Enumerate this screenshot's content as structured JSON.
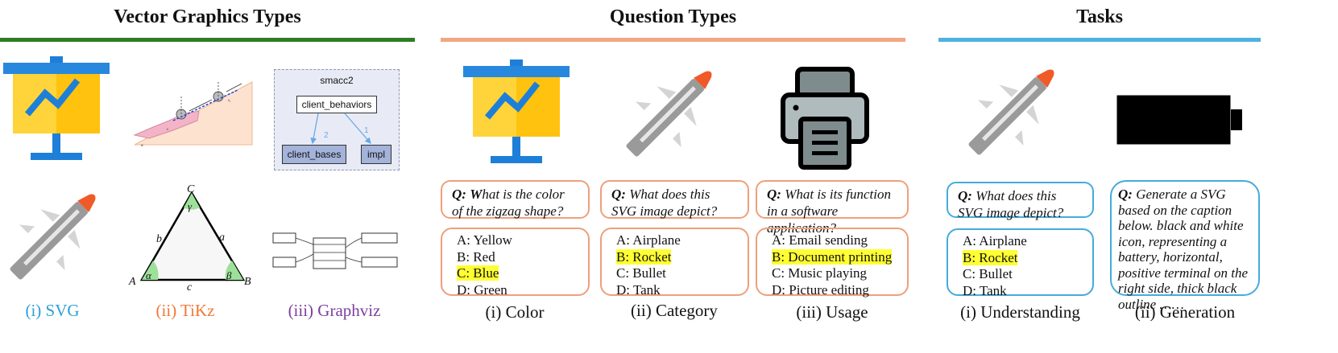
{
  "colors": {
    "green_rule": "#2e7d24",
    "orange_rule": "#f2a784",
    "blue_rule": "#4db2e0",
    "svg_caption": "#2a9fd8",
    "tikz_caption": "#f07836",
    "graphviz_caption": "#7b3f9e",
    "highlight": "#ffff33",
    "option_border_orange": "#ef9f7c",
    "option_border_blue": "#46abdb"
  },
  "sections": {
    "vector": {
      "title": "Vector Graphics Types",
      "captions": [
        "(i) SVG",
        "(ii) TiKz",
        "(iii) Graphviz"
      ]
    },
    "questions": {
      "title": "Question Types",
      "captions": [
        "(i) Color",
        "(ii) Category",
        "(iii) Usage"
      ]
    },
    "tasks": {
      "title": "Tasks",
      "captions": [
        "(i) Understanding",
        "(ii) Generation"
      ]
    }
  },
  "graphviz": {
    "title": "smacc2",
    "root": "client_behaviors",
    "left": "client_bases",
    "right": "impl",
    "edge_left": "2",
    "edge_right": "1"
  },
  "triangle": {
    "A": "A",
    "B": "B",
    "C": "C",
    "a": "a",
    "b": "b",
    "c": "c",
    "alpha": "α",
    "beta": "β",
    "gamma": "γ"
  },
  "q_color": {
    "q": "Q:",
    "bold_letter": "W",
    "text": "hat is the color of the zigzag shape?",
    "options": [
      "A: Yellow",
      "B: Red",
      "C: Blue",
      "D: Green"
    ],
    "answer_index": 2
  },
  "q_category": {
    "q": "Q:",
    "text": " What does this SVG image depict?",
    "options": [
      "A: Airplane",
      "B: Rocket",
      "C: Bullet",
      "D: Tank"
    ],
    "answer_index": 1
  },
  "q_usage": {
    "q": "Q:",
    "text": " What is its function in a software application?",
    "options": [
      "A: Email sending",
      "B: Document printing",
      "C: Music playing",
      "D: Picture editing"
    ],
    "answer_index": 1
  },
  "t_understanding": {
    "q": "Q:",
    "text": " What does this SVG image depict?",
    "options": [
      "A: Airplane",
      "B: Rocket",
      "C: Bullet",
      "D: Tank"
    ],
    "answer_index": 1
  },
  "t_generation": {
    "q": "Q:",
    "text": " Generate a SVG based on the caption below. black and white icon, representing a battery, horizontal, positive terminal on the right side, thick black outline ……"
  }
}
